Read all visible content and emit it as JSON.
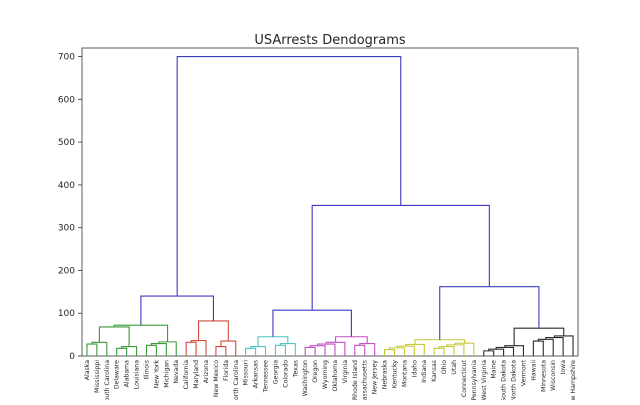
{
  "chart_data": {
    "type": "dendrogram",
    "title": "USArrests Dendograms",
    "xlabel": "",
    "ylabel": "",
    "ylim": [
      0,
      720
    ],
    "yticks": [
      0,
      100,
      200,
      300,
      400,
      500,
      600,
      700
    ],
    "grid": false,
    "leaves": [
      "Alaska",
      "Mississippi",
      "South Carolina",
      "Delaware",
      "Alabama",
      "Louisiana",
      "Illinois",
      "New York",
      "Michigan",
      "Nevada",
      "California",
      "Maryland",
      "Arizona",
      "New Mexico",
      "Florida",
      "North Carolina",
      "Missouri",
      "Arkansas",
      "Tennessee",
      "Georgia",
      "Colorado",
      "Texas",
      "Washington",
      "Oregon",
      "Wyoming",
      "Oklahoma",
      "Virginia",
      "Rhode Island",
      "Massachusetts",
      "New Jersey",
      "Nebraska",
      "Kentucky",
      "Montana",
      "Idaho",
      "Indiana",
      "Kansas",
      "Ohio",
      "Utah",
      "Connecticut",
      "Pennsylvania",
      "West Virginia",
      "Maine",
      "South Dakota",
      "North Dakota",
      "Vermont",
      "Hawaii",
      "Minnesota",
      "Wisconsin",
      "Iowa",
      "New Hampshire"
    ],
    "colors": {
      "link_above_threshold": "#3b3bbf",
      "cluster_1": "#3a9a3a",
      "cluster_2": "#d24b3c",
      "cluster_3": "#4fc5c5",
      "cluster_4": "#c24fc2",
      "cluster_5": "#c5c83a",
      "cluster_6": "#2b2b2b"
    },
    "clusters": [
      {
        "color_key": "cluster_1",
        "leaves": [
          "Alaska",
          "Mississippi",
          "South Carolina",
          "Delaware",
          "Alabama",
          "Louisiana",
          "Illinois",
          "New York",
          "Michigan",
          "Nevada"
        ]
      },
      {
        "color_key": "cluster_2",
        "leaves": [
          "California",
          "Maryland",
          "Arizona",
          "New Mexico",
          "Florida",
          "North Carolina"
        ]
      },
      {
        "color_key": "cluster_3",
        "leaves": [
          "Missouri",
          "Arkansas",
          "Tennessee",
          "Georgia",
          "Colorado",
          "Texas"
        ]
      },
      {
        "color_key": "cluster_4",
        "leaves": [
          "Washington",
          "Oregon",
          "Wyoming",
          "Oklahoma",
          "Virginia",
          "Rhode Island",
          "Massachusetts",
          "New Jersey"
        ]
      },
      {
        "color_key": "cluster_5",
        "leaves": [
          "Nebraska",
          "Kentucky",
          "Montana",
          "Idaho",
          "Indiana",
          "Kansas",
          "Ohio",
          "Utah",
          "Connecticut",
          "Pennsylvania"
        ]
      },
      {
        "color_key": "cluster_6",
        "leaves": [
          "West Virginia",
          "Maine",
          "South Dakota",
          "North Dakota",
          "Vermont",
          "Hawaii",
          "Minnesota",
          "Wisconsin",
          "Iowa",
          "New Hampshire"
        ]
      }
    ],
    "merges": [
      {
        "children": [
          [
            0,
            1,
            2
          ],
          [
            3,
            4,
            5
          ],
          [
            6,
            7,
            8,
            9
          ]
        ],
        "heights": [
          [
            28,
            12,
            8
          ],
          [
            18,
            7,
            12
          ],
          [
            25,
            13,
            20
          ]
        ],
        "group_heights": [
          68,
          45,
          26
        ],
        "cluster": 0
      },
      {
        "children": [
          [
            10,
            11,
            12
          ],
          [
            13,
            14,
            15
          ]
        ],
        "heights": [
          [
            32,
            15,
            10
          ],
          [
            22,
            35,
            8
          ]
        ],
        "group_heights": [
          82,
          32
        ],
        "cluster": 1
      },
      {
        "children": [
          [
            16,
            17,
            18
          ],
          [
            19,
            20,
            21
          ]
        ],
        "heights": [
          [
            18,
            10,
            8
          ],
          [
            25,
            12,
            15
          ]
        ],
        "group_heights": [
          45,
          30
        ],
        "cluster": 2
      },
      {
        "children": [
          [
            22,
            23,
            24,
            25,
            26
          ],
          [
            27,
            28,
            29
          ]
        ],
        "heights": [
          [
            20,
            12,
            15,
            8,
            10
          ],
          [
            25,
            12,
            10
          ]
        ],
        "group_heights": [
          45,
          25
        ],
        "cluster": 3
      },
      {
        "children": [
          [
            30,
            31,
            32,
            33,
            34
          ],
          [
            35,
            36,
            37,
            38,
            39
          ]
        ],
        "heights": [
          [
            15,
            12,
            10,
            20,
            8
          ],
          [
            18,
            15,
            10,
            22,
            10
          ]
        ],
        "group_heights": [
          38,
          30
        ],
        "cluster": 4
      },
      {
        "children": [
          [
            40,
            41,
            42,
            43,
            44
          ],
          [
            45,
            46,
            47,
            48,
            49
          ]
        ],
        "heights": [
          [
            12,
            8,
            15,
            10,
            20
          ],
          [
            35,
            28,
            20,
            15,
            8
          ]
        ],
        "group_heights": [
          65,
          50
        ],
        "cluster": 5
      }
    ],
    "top_links": [
      {
        "left": "cluster_1",
        "right": "cluster_2",
        "height": 140
      },
      {
        "left": "cluster_3",
        "right": "cluster_4",
        "height": 107
      },
      {
        "left": "cluster_5",
        "right": "cluster_6",
        "height": 162
      },
      {
        "left": "cluster_3+4",
        "right": "cluster_5+6",
        "height": 352
      },
      {
        "left": "cluster_1+2",
        "right": "cluster_3+4+5+6",
        "height": 700
      }
    ]
  }
}
